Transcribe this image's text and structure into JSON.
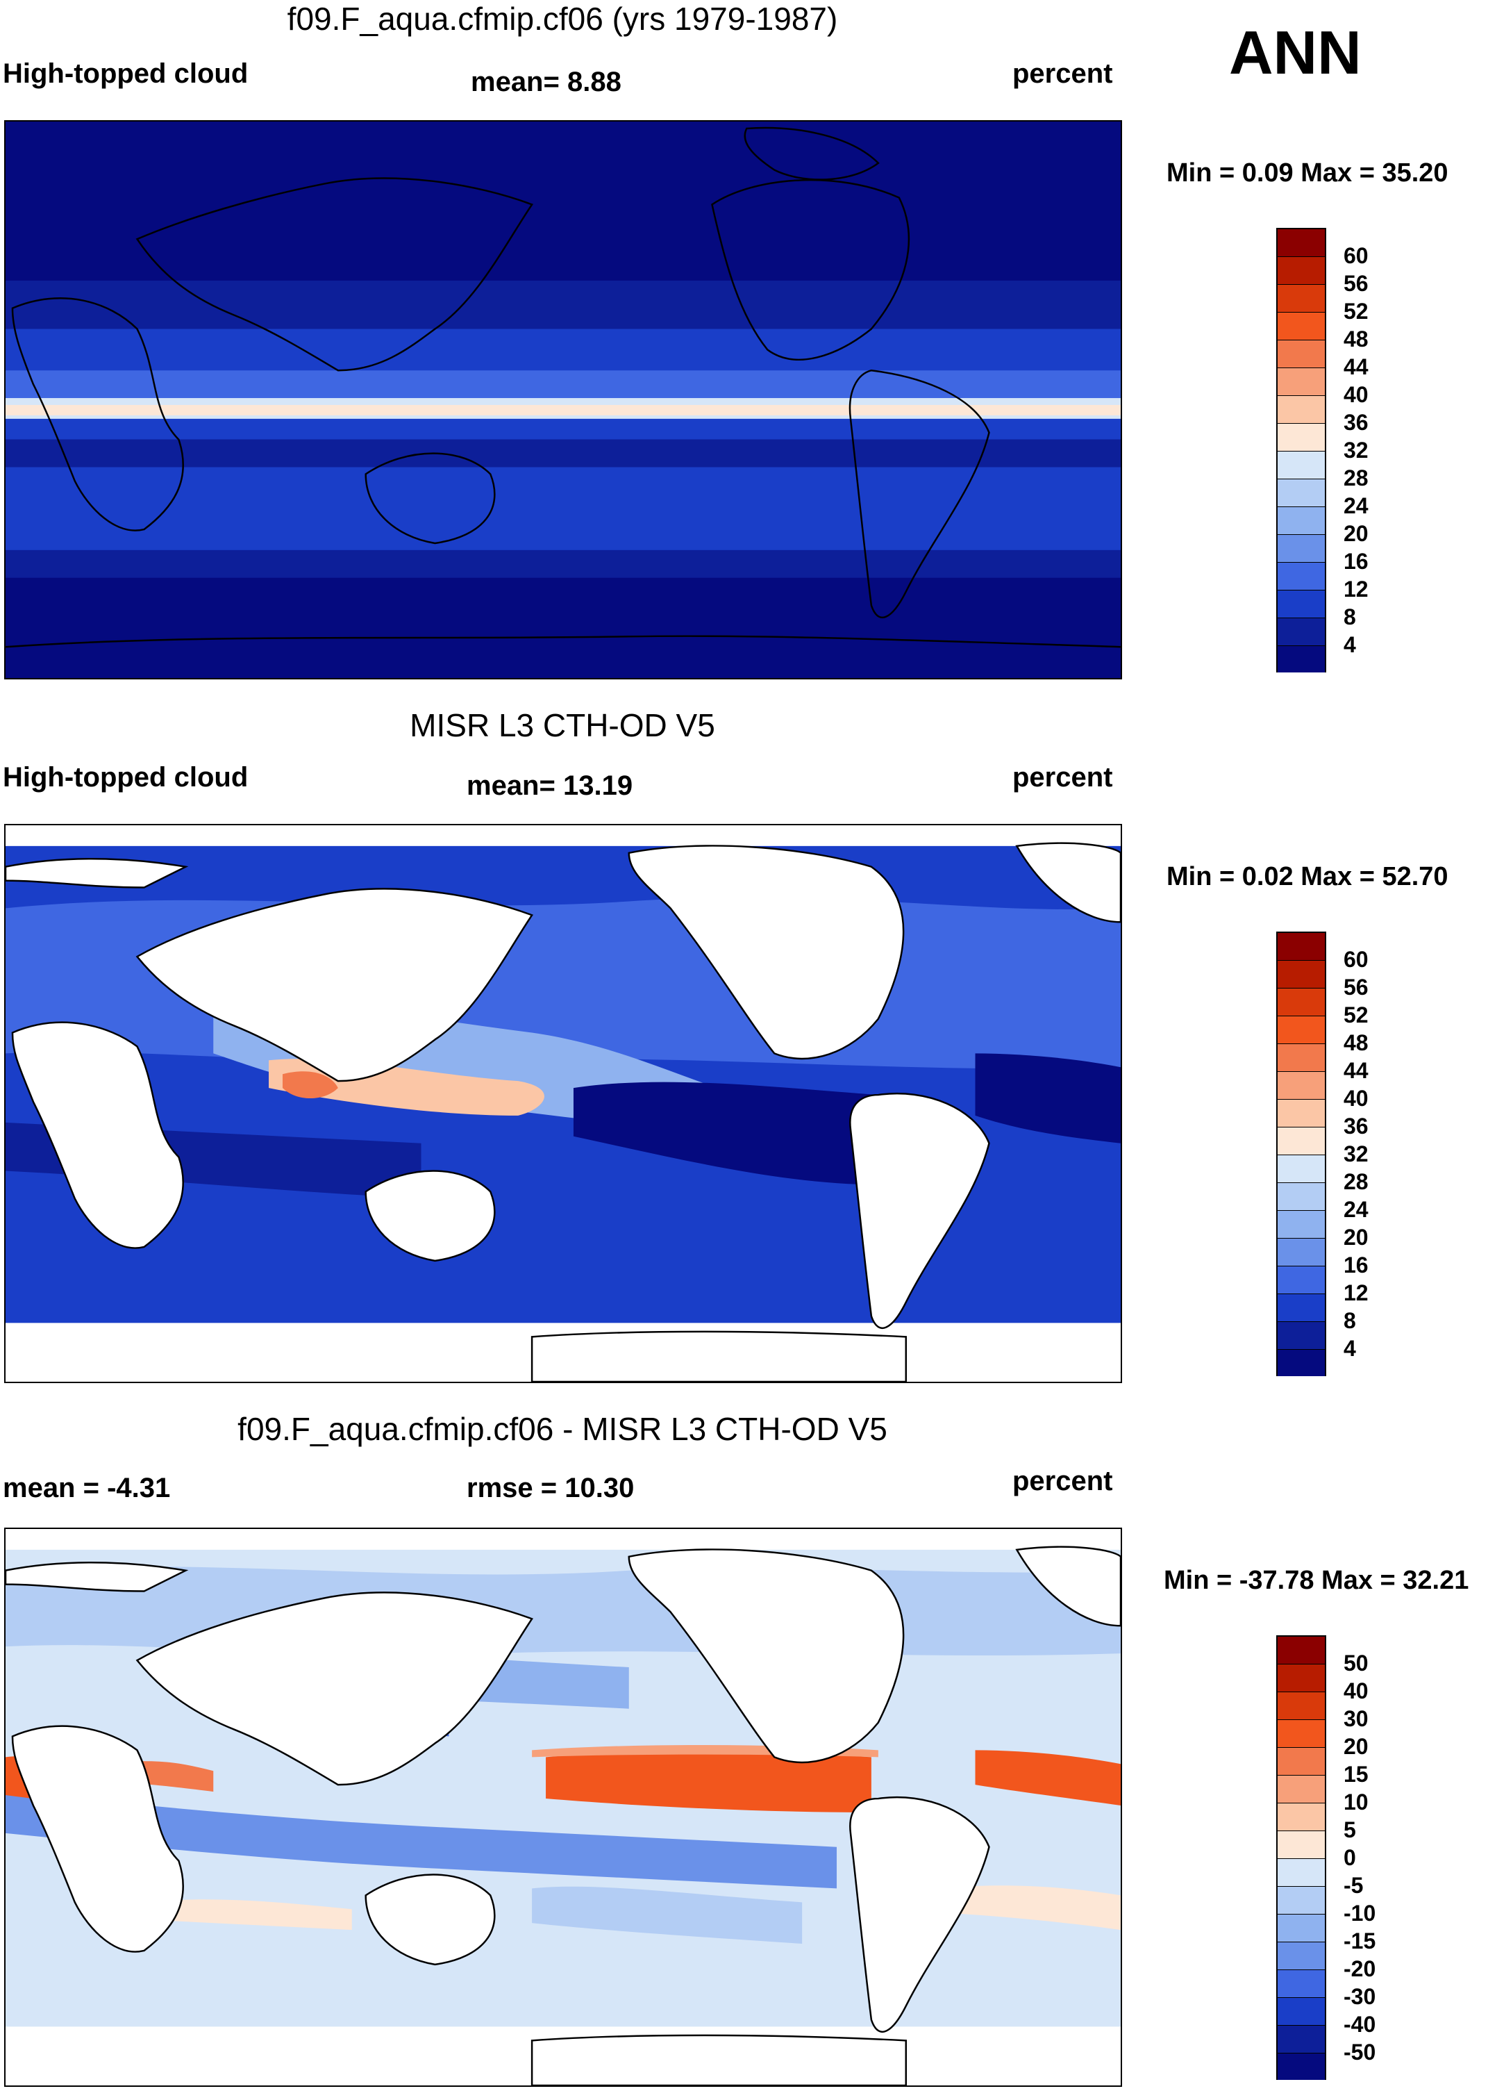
{
  "headline": "ANN",
  "panels": [
    {
      "title": "f09.F_aqua.cfmip.cf06 (yrs 1979-1987)",
      "left_label": "High-topped cloud",
      "center_label": "mean=   8.88",
      "right_label": "percent",
      "minmax": "Min =   0.09 Max =  35.20",
      "colorbar_labels": [
        "60",
        "56",
        "52",
        "48",
        "44",
        "40",
        "36",
        "32",
        "28",
        "24",
        "20",
        "16",
        "12",
        "8",
        "4"
      ],
      "colorbar_colors": [
        "#8b0000",
        "#b71c00",
        "#d93a0b",
        "#f2561d",
        "#f2794c",
        "#f7a07a",
        "#fbc6a6",
        "#fde7d6",
        "#d6e6f8",
        "#b3cdf4",
        "#8fb2ef",
        "#6a91e9",
        "#3f67e2",
        "#1a3ec8",
        "#0d1f99",
        "#050a7f"
      ]
    },
    {
      "title": "MISR L3 CTH-OD V5",
      "left_label": "High-topped cloud",
      "center_label": "mean=  13.19",
      "right_label": "percent",
      "minmax": "Min =   0.02 Max =  52.70",
      "colorbar_labels": [
        "60",
        "56",
        "52",
        "48",
        "44",
        "40",
        "36",
        "32",
        "28",
        "24",
        "20",
        "16",
        "12",
        "8",
        "4"
      ],
      "colorbar_colors": [
        "#8b0000",
        "#b71c00",
        "#d93a0b",
        "#f2561d",
        "#f2794c",
        "#f7a07a",
        "#fbc6a6",
        "#fde7d6",
        "#d6e6f8",
        "#b3cdf4",
        "#8fb2ef",
        "#6a91e9",
        "#3f67e2",
        "#1a3ec8",
        "#0d1f99",
        "#050a7f"
      ]
    },
    {
      "title": "f09.F_aqua.cfmip.cf06 - MISR L3 CTH-OD V5",
      "left_label": "mean =  -4.31",
      "center_label": "rmse =  10.30",
      "right_label": "percent",
      "minmax": "Min = -37.78 Max =  32.21",
      "colorbar_labels": [
        "50",
        "40",
        "30",
        "20",
        "15",
        "10",
        "5",
        "0",
        "-5",
        "-10",
        "-15",
        "-20",
        "-30",
        "-40",
        "-50"
      ],
      "colorbar_colors": [
        "#8b0000",
        "#b71c00",
        "#d93a0b",
        "#f2561d",
        "#f2794c",
        "#f7a07a",
        "#fbc6a6",
        "#fde7d6",
        "#d6e6f8",
        "#b3cdf4",
        "#8fb2ef",
        "#6a91e9",
        "#3f67e2",
        "#1a3ec8",
        "#0d1f99",
        "#050a7f"
      ]
    }
  ]
}
